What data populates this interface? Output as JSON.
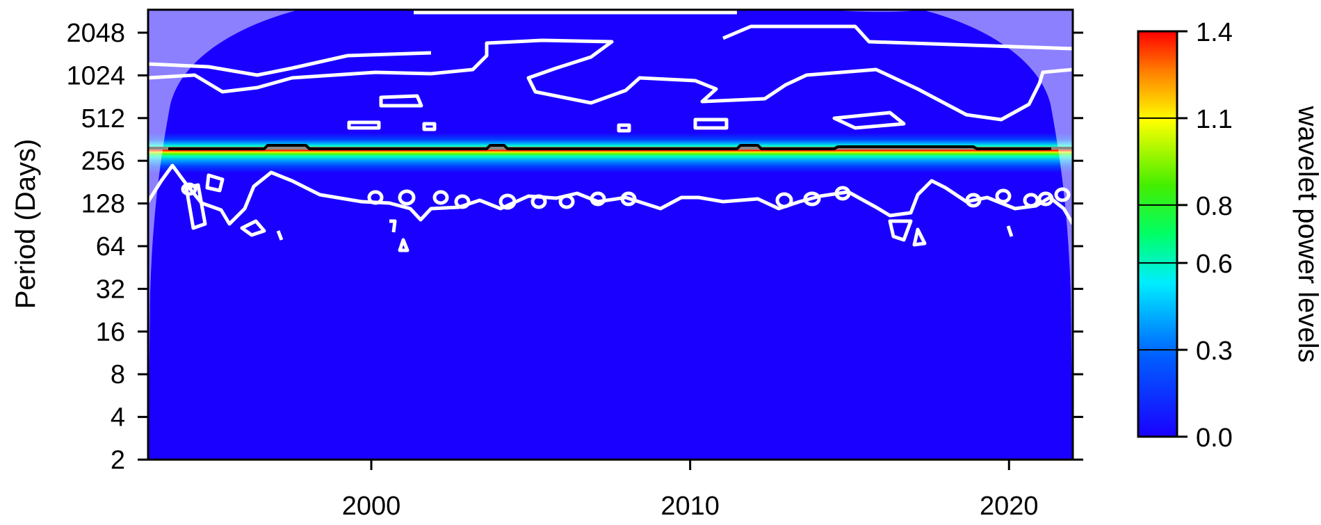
{
  "chart_data": {
    "type": "heatmap",
    "title": "",
    "xlabel": "",
    "ylabel": "Period (Days)",
    "x_ticks": [
      "2000",
      "2010",
      "2020"
    ],
    "x_tick_values": [
      2000,
      2010,
      2020
    ],
    "xlim": [
      1993,
      2022
    ],
    "y_scale": "log2",
    "y_ticks": [
      "2",
      "4",
      "8",
      "16",
      "32",
      "64",
      "128",
      "256",
      "512",
      "1024",
      "2048"
    ],
    "y_tick_values": [
      2,
      4,
      8,
      16,
      32,
      64,
      128,
      256,
      512,
      1024,
      2048
    ],
    "ylim": [
      2,
      4096
    ],
    "dominant_period_days": 365,
    "colorbar": {
      "label": "wavelet power levels",
      "ticks": [
        "0.0",
        "0.3",
        "0.6",
        "0.8",
        "1.1",
        "1.4"
      ],
      "tick_values": [
        0.0,
        0.3,
        0.6,
        0.8,
        1.1,
        1.4
      ],
      "range": [
        0.0,
        1.4
      ],
      "colors": [
        "#1a00ff",
        "#0066ff",
        "#00e5ff",
        "#22ee22",
        "#ffff00",
        "#ff7700",
        "#ff0000"
      ]
    },
    "significance_contour_color": "#ffffff",
    "ridge_color": "#000000",
    "cone_of_influence_shading": "#ffffff",
    "grid": false,
    "legend": "colorbar-right"
  }
}
